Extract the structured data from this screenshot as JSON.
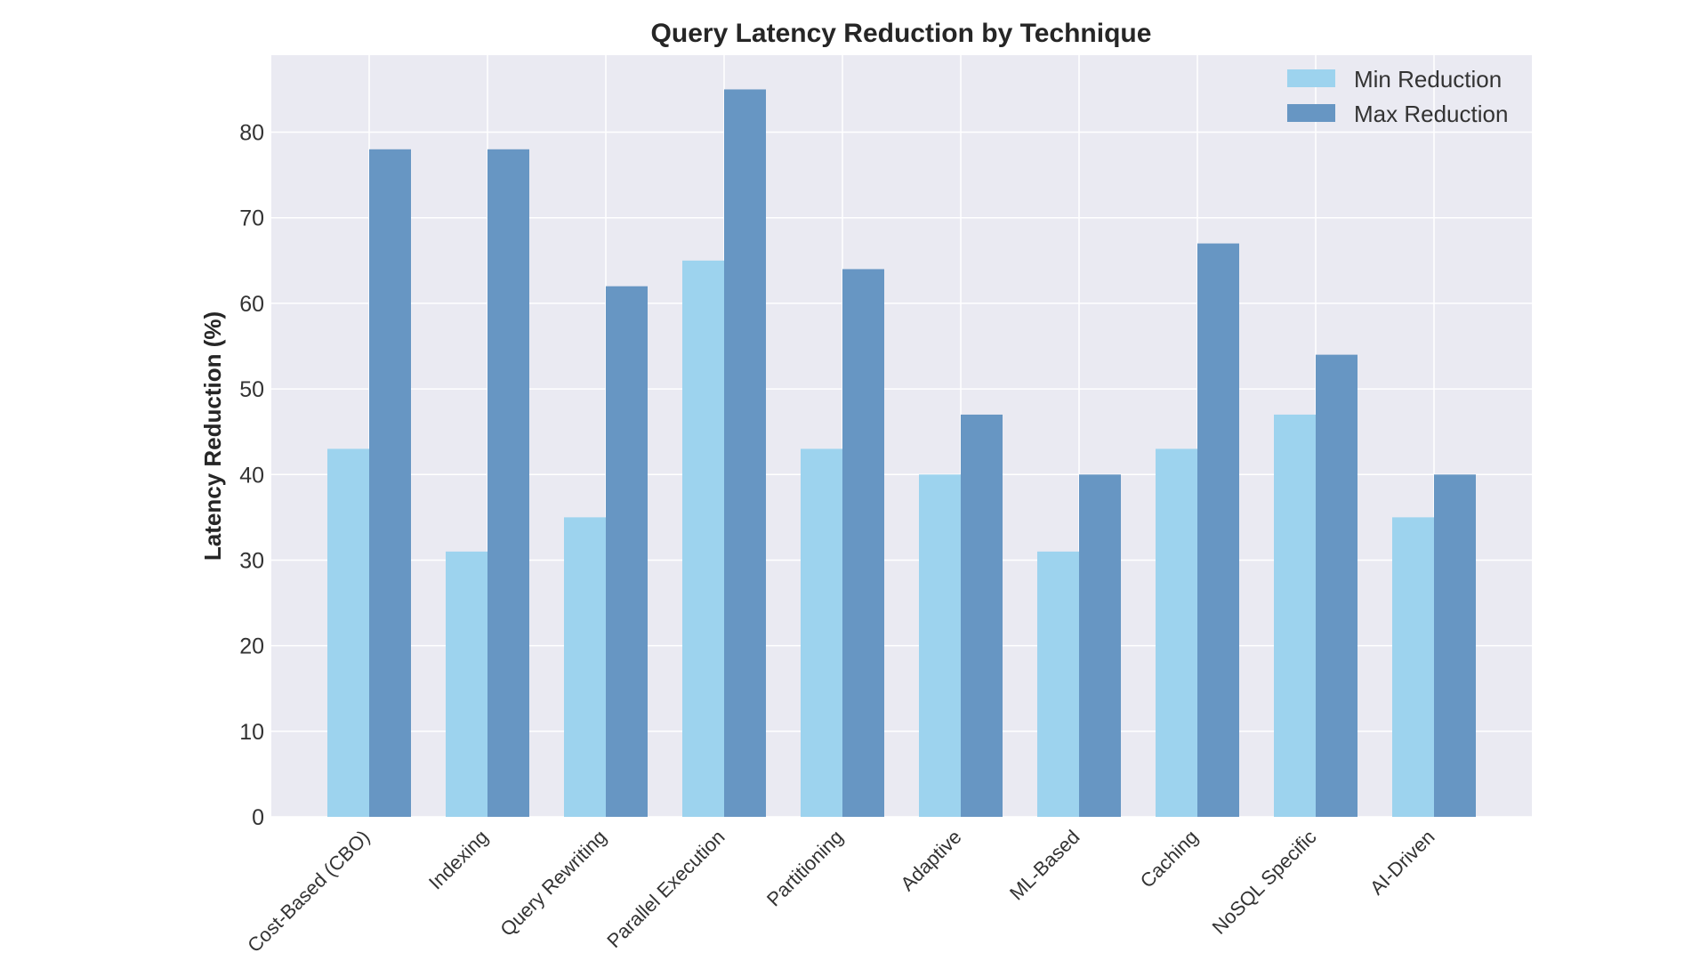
{
  "chart_data": {
    "type": "bar",
    "title": "Query Latency Reduction by Technique",
    "xlabel": "",
    "ylabel": "Latency Reduction (%)",
    "categories": [
      "Cost-Based (CBO)",
      "Indexing",
      "Query Rewriting",
      "Parallel Execution",
      "Partitioning",
      "Adaptive",
      "ML-Based",
      "Caching",
      "NoSQL Specific",
      "AI-Driven"
    ],
    "series": [
      {
        "name": "Min Reduction",
        "color": "#9dd3ee",
        "values": [
          43,
          31,
          35,
          65,
          43,
          40,
          31,
          43,
          47,
          35
        ]
      },
      {
        "name": "Max Reduction",
        "color": "#6796c3",
        "values": [
          78,
          78,
          62,
          85,
          64,
          47,
          40,
          67,
          54,
          40
        ]
      }
    ],
    "ylim": [
      0,
      89
    ],
    "yticks": [
      0,
      10,
      20,
      30,
      40,
      50,
      60,
      70,
      80
    ],
    "grid": true,
    "legend_position": "top-right",
    "colors": {
      "plot_background": "#eaeaf2",
      "grid": "#ffffff"
    }
  }
}
